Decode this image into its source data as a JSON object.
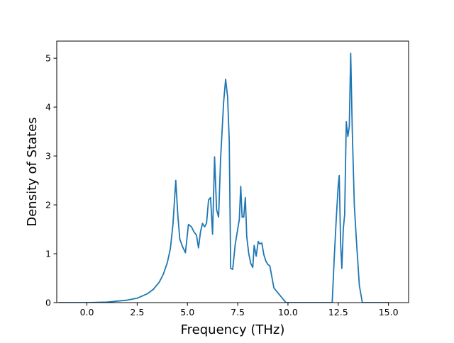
{
  "chart_data": {
    "type": "line",
    "title": "",
    "xlabel": "Frequency (THz)",
    "ylabel": "Density of States",
    "xlim": [
      -1.5,
      16.0
    ],
    "ylim": [
      0,
      5.35
    ],
    "x_ticks": [
      0.0,
      2.5,
      5.0,
      7.5,
      10.0,
      12.5,
      15.0
    ],
    "x_tick_labels": [
      "0.0",
      "2.5",
      "5.0",
      "7.5",
      "10.0",
      "12.5",
      "15.0"
    ],
    "y_ticks": [
      0,
      1,
      2,
      3,
      4,
      5
    ],
    "y_tick_labels": [
      "0",
      "1",
      "2",
      "3",
      "4",
      "5"
    ],
    "grid": false,
    "series": [
      {
        "color": "#1f77b4",
        "x": [
          -1.4,
          0.0,
          1.0,
          2.0,
          2.5,
          3.0,
          3.3,
          3.6,
          3.8,
          4.0,
          4.15,
          4.28,
          4.42,
          4.52,
          4.62,
          4.75,
          4.9,
          5.05,
          5.2,
          5.32,
          5.45,
          5.55,
          5.65,
          5.75,
          5.85,
          5.95,
          6.05,
          6.15,
          6.25,
          6.35,
          6.45,
          6.55,
          6.65,
          6.8,
          6.9,
          7.0,
          7.08,
          7.15,
          7.25,
          7.38,
          7.5,
          7.58,
          7.65,
          7.72,
          7.8,
          7.88,
          7.95,
          8.05,
          8.15,
          8.25,
          8.32,
          8.42,
          8.52,
          8.6,
          8.7,
          8.8,
          8.9,
          9.0,
          9.1,
          9.3,
          9.6,
          9.8,
          9.9,
          10.2,
          11.0,
          12.0,
          12.2,
          12.3,
          12.4,
          12.5,
          12.55,
          12.62,
          12.68,
          12.75,
          12.82,
          12.9,
          12.98,
          13.05,
          13.12,
          13.2,
          13.3,
          13.4,
          13.55,
          13.7,
          14.0,
          15.0
        ],
        "y": [
          0.0,
          0.0,
          0.01,
          0.05,
          0.09,
          0.18,
          0.27,
          0.42,
          0.58,
          0.82,
          1.1,
          1.6,
          2.5,
          1.8,
          1.3,
          1.15,
          1.02,
          1.6,
          1.55,
          1.45,
          1.38,
          1.12,
          1.45,
          1.62,
          1.55,
          1.62,
          2.1,
          2.15,
          1.4,
          2.98,
          1.9,
          1.75,
          2.95,
          4.1,
          4.57,
          4.2,
          3.3,
          0.7,
          0.68,
          1.2,
          1.5,
          1.7,
          2.38,
          1.75,
          1.75,
          2.15,
          1.35,
          1.0,
          0.8,
          0.72,
          1.17,
          0.95,
          1.25,
          1.2,
          1.22,
          0.98,
          0.85,
          0.78,
          0.75,
          0.3,
          0.15,
          0.05,
          0.0,
          0.0,
          0.0,
          0.0,
          0.0,
          0.9,
          1.7,
          2.4,
          2.6,
          1.2,
          0.7,
          1.5,
          1.8,
          3.7,
          3.4,
          3.6,
          5.1,
          3.5,
          2.0,
          1.3,
          0.35,
          0.0,
          0.0,
          0.0
        ]
      }
    ]
  }
}
